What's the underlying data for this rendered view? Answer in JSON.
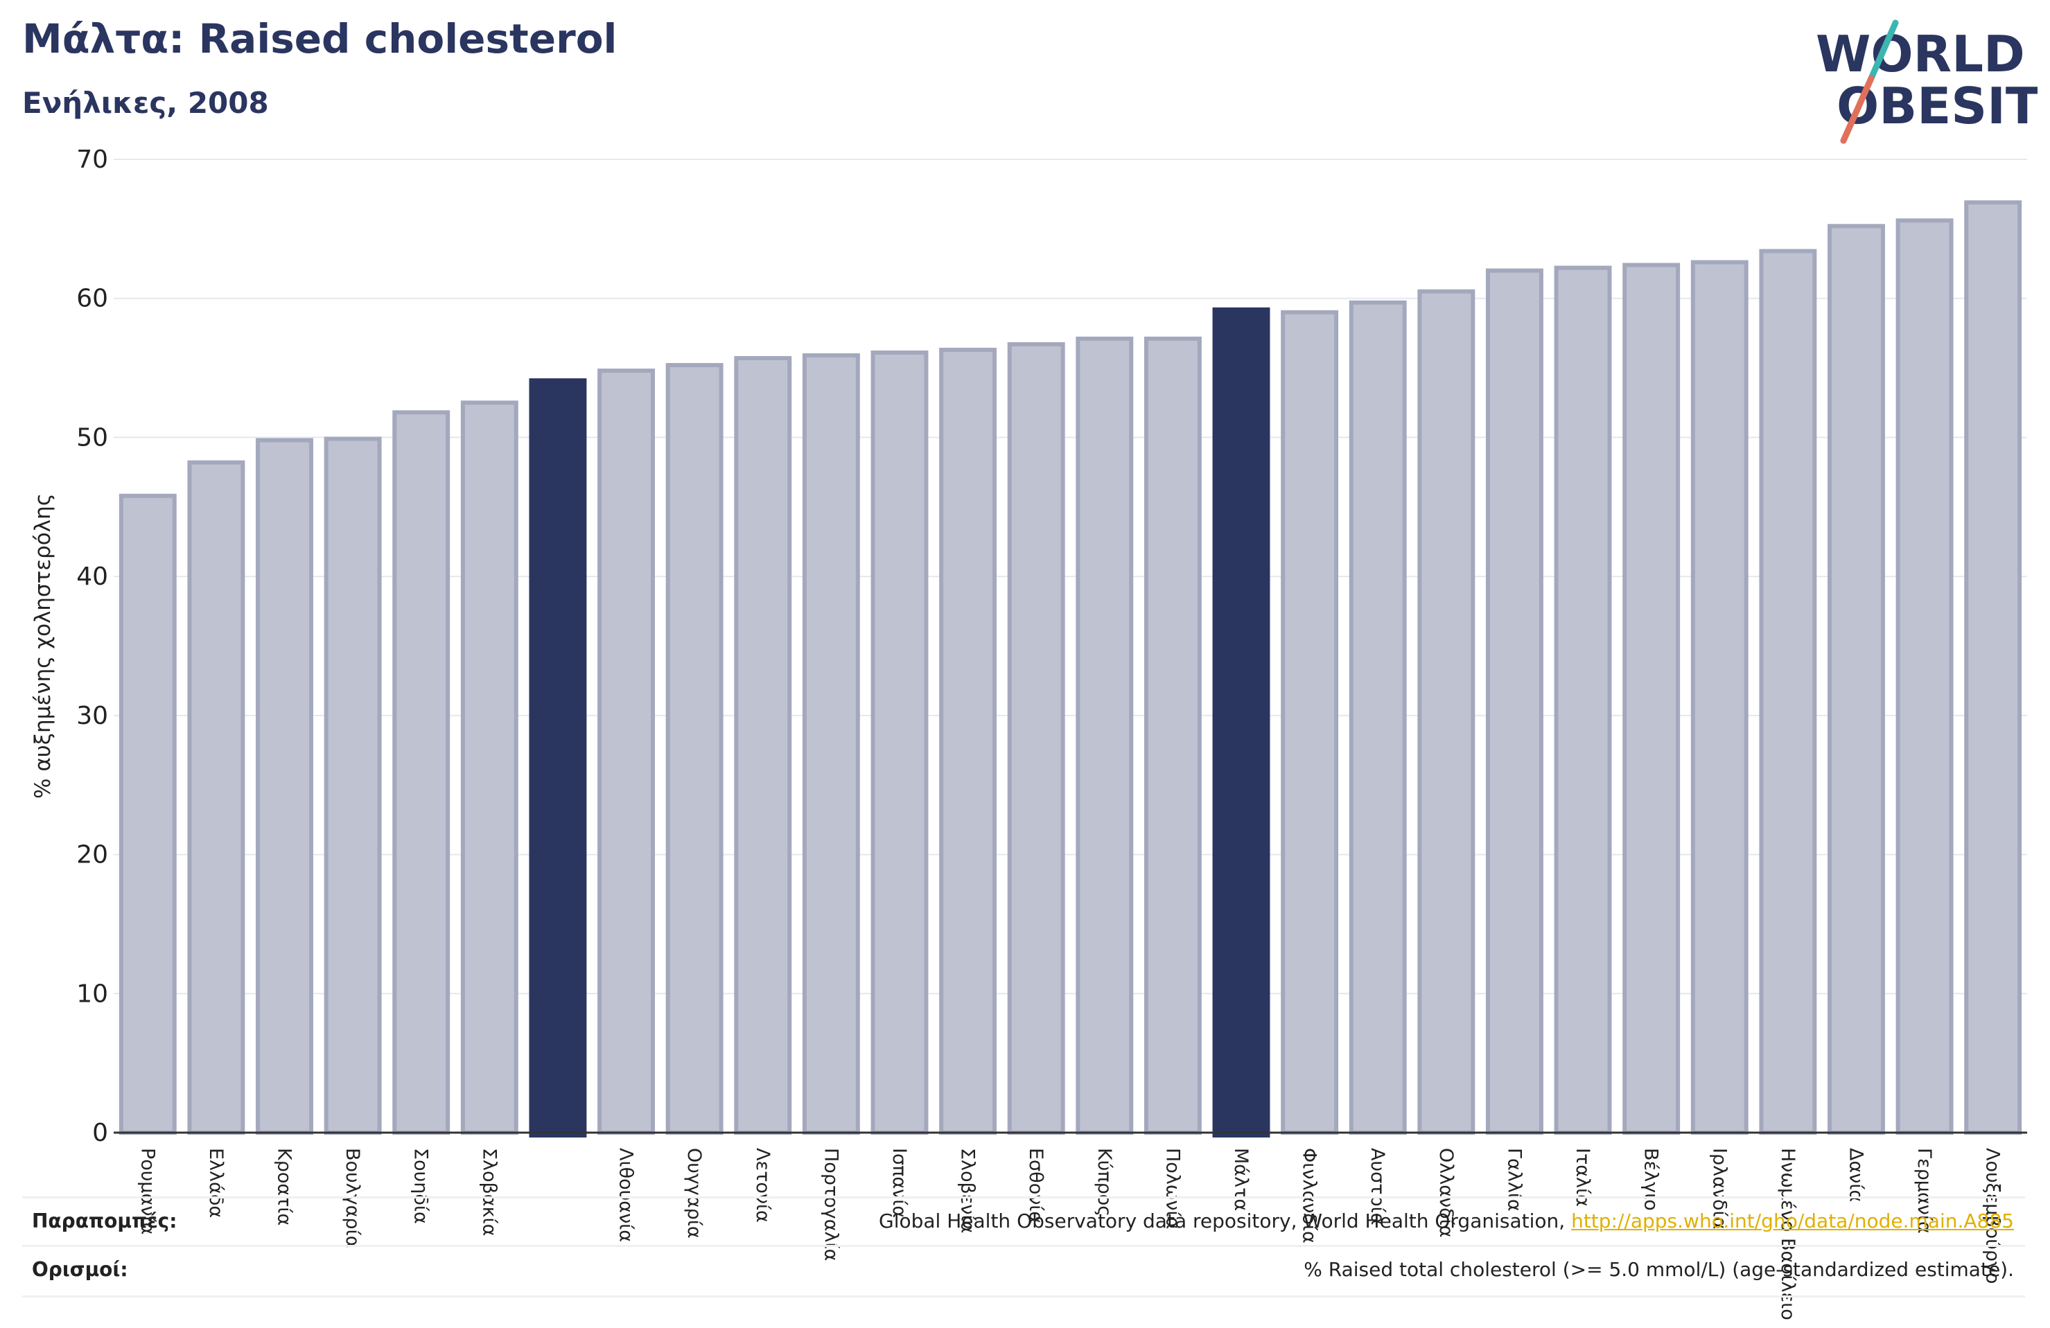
{
  "header": {
    "title": "Μάλτα: Raised cholesterol",
    "subtitle": "Ενήλικες, 2008"
  },
  "logo": {
    "line1": "WORLD",
    "line2": "OBESITY"
  },
  "colors": {
    "highlight_bar": "#2a3560",
    "default_bar": "#bfc2d0",
    "default_bar_edge": "#a3a8bd",
    "text_dark": "#2a3560",
    "link": "#e0b000",
    "logo_teal": "#3db5b0",
    "logo_coral": "#e0705a"
  },
  "chart_data": {
    "type": "bar",
    "title": "Μάλτα: Raised cholesterol",
    "subtitle": "Ενήλικες, 2008",
    "xlabel": "",
    "ylabel": "% αυξημένης χοληστερόλης",
    "ylim": [
      0,
      70
    ],
    "yticks": [
      0,
      10,
      20,
      30,
      40,
      50,
      60,
      70
    ],
    "grid": true,
    "categories": [
      "Ρουμανία",
      "Ελλάδα",
      "Κροατία",
      "Βουλγαρία",
      "Σουηδία",
      "Σλοβακία",
      "",
      "Λιθουανία",
      "Ουγγαρία",
      "Λετονία",
      "Πορτογαλία",
      "Ισπανία",
      "Σλοβενία",
      "Εσθονία",
      "Κύπρος",
      "Πολωνία",
      "Μάλτα",
      "Φινλανδία",
      "Αυστρία",
      "Ολλανδία",
      "Γαλλία",
      "Ιταλία",
      "Βέλγιο",
      "Ιρλανδία",
      "Ηνωμένο Βασίλειο",
      "Δανία",
      "Γερμανία",
      "Λουξεμβούργο"
    ],
    "values": [
      45.8,
      48.2,
      49.8,
      49.9,
      51.8,
      52.5,
      54.1,
      54.8,
      55.2,
      55.7,
      55.9,
      56.1,
      56.3,
      56.7,
      57.1,
      57.1,
      59.2,
      59.0,
      59.7,
      60.5,
      62.0,
      62.2,
      62.4,
      62.6,
      63.4,
      65.2,
      65.6,
      66.9
    ],
    "highlighted": [
      6,
      16
    ]
  },
  "footer": {
    "references_label": "Παραπομπές:",
    "references_text": "Global Health Observatory data repository, World Health Organisation, ",
    "references_link": "http://apps.who.int/gho/data/node.main.A885",
    "definitions_label": "Ορισμοί:",
    "definitions_text": "% Raised total cholesterol (>= 5.0 mmol/L) (age-standardized estimate)."
  }
}
